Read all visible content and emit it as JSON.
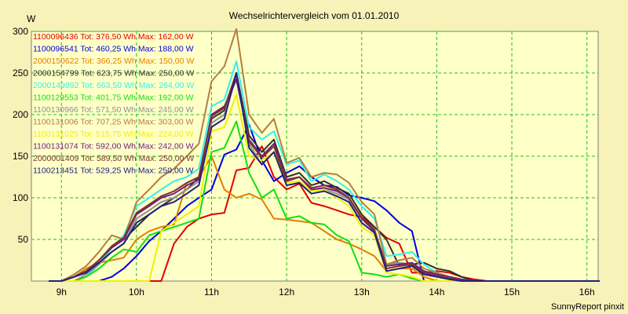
{
  "chart_data": {
    "type": "line",
    "title": "Wechselrichtervergleich vom 01.01.2010",
    "ylabel": "W",
    "xlabel": "",
    "ylim": [
      0,
      300
    ],
    "xlim": [
      8.6,
      16.15
    ],
    "y_ticks": [
      50,
      100,
      150,
      200,
      250,
      300
    ],
    "x_ticks": [
      {
        "v": 9,
        "label": "9h"
      },
      {
        "v": 10,
        "label": "10h"
      },
      {
        "v": 11,
        "label": "11h"
      },
      {
        "v": 12,
        "label": "12h"
      },
      {
        "v": 13,
        "label": "13h"
      },
      {
        "v": 14,
        "label": "14h"
      },
      {
        "v": 15,
        "label": "15h"
      },
      {
        "v": 16,
        "label": "16h"
      }
    ],
    "grid": true,
    "legend_position": "top-left inside",
    "x": [
      8.83,
      9.0,
      9.17,
      9.33,
      9.5,
      9.67,
      9.83,
      10.0,
      10.17,
      10.33,
      10.5,
      10.67,
      10.83,
      11.0,
      11.17,
      11.33,
      11.5,
      11.67,
      11.83,
      12.0,
      12.17,
      12.33,
      12.5,
      12.67,
      12.83,
      13.0,
      13.17,
      13.33,
      13.5,
      13.67,
      13.83,
      14.0,
      14.17,
      14.33,
      14.5,
      14.67,
      14.83,
      15.0,
      15.17,
      15.33,
      15.5,
      15.67,
      15.83,
      16.0,
      16.17
    ],
    "series": [
      {
        "name": "1100096436 Tot: 376,50 Wh Max: 162,00 W",
        "color": "#e00000",
        "values": [
          0,
          0,
          0,
          0,
          0,
          0,
          0,
          0,
          0,
          0,
          45,
          65,
          75,
          80,
          82,
          133,
          136,
          162,
          125,
          110,
          117,
          94,
          90,
          85,
          80,
          77,
          65,
          52,
          45,
          10,
          10,
          12,
          10,
          5,
          2,
          0,
          0,
          0,
          0,
          0,
          0,
          0,
          0,
          0,
          0
        ]
      },
      {
        "name": "1100096541 Tot: 460,25 Wh Max: 188,00 W",
        "color": "#0000e0",
        "values": [
          0,
          0,
          0,
          0,
          0,
          5,
          15,
          30,
          48,
          60,
          75,
          90,
          100,
          110,
          152,
          158,
          188,
          145,
          120,
          130,
          138,
          125,
          115,
          113,
          103,
          100,
          96,
          85,
          70,
          60,
          0,
          0,
          0,
          0,
          0,
          0,
          0,
          0,
          0,
          0,
          0,
          0,
          0,
          0,
          0
        ]
      },
      {
        "name": "2000150622 Tot: 366,25 Wh Max: 150,00 W",
        "color": "#e08000",
        "values": [
          0,
          0,
          5,
          15,
          22,
          25,
          28,
          50,
          60,
          65,
          68,
          118,
          125,
          150,
          110,
          100,
          105,
          98,
          75,
          74,
          72,
          70,
          60,
          50,
          45,
          38,
          30,
          12,
          15,
          15,
          5,
          0,
          0,
          0,
          0,
          0,
          0,
          0,
          0,
          0,
          0,
          0,
          0,
          0,
          0
        ]
      },
      {
        "name": "2000154799 Tot: 623,75 Wh Max: 250,00 W",
        "color": "#303030",
        "values": [
          0,
          0,
          5,
          12,
          25,
          40,
          50,
          65,
          80,
          90,
          100,
          110,
          125,
          195,
          205,
          250,
          175,
          155,
          170,
          125,
          130,
          115,
          120,
          112,
          105,
          80,
          65,
          50,
          18,
          20,
          22,
          15,
          12,
          5,
          0,
          0,
          0,
          0,
          0,
          0,
          0,
          0,
          0,
          0,
          0
        ]
      },
      {
        "name": "2000149892 Tot: 663,50 Wh Max: 264,00 W",
        "color": "#30f0f0",
        "values": [
          0,
          0,
          0,
          5,
          20,
          40,
          55,
          90,
          100,
          110,
          120,
          125,
          135,
          210,
          218,
          264,
          185,
          170,
          180,
          140,
          145,
          120,
          128,
          120,
          110,
          90,
          75,
          30,
          32,
          35,
          20,
          10,
          5,
          2,
          0,
          0,
          0,
          0,
          0,
          0,
          0,
          0,
          0,
          0,
          0
        ]
      },
      {
        "name": "1100129553 Tot: 401,75 Wh Max: 192,00 W",
        "color": "#10e010",
        "values": [
          0,
          0,
          0,
          5,
          15,
          28,
          38,
          35,
          55,
          60,
          65,
          70,
          75,
          155,
          160,
          192,
          130,
          100,
          110,
          75,
          78,
          70,
          68,
          55,
          48,
          10,
          8,
          5,
          8,
          3,
          0,
          0,
          0,
          0,
          0,
          0,
          0,
          0,
          0,
          0,
          0,
          0,
          0,
          0,
          0
        ]
      },
      {
        "name": "1100130966 Tot: 571,50 Wh Max: 245,00 W",
        "color": "#909090",
        "values": [
          0,
          0,
          0,
          8,
          20,
          35,
          45,
          75,
          85,
          95,
          100,
          110,
          120,
          190,
          200,
          245,
          165,
          140,
          155,
          120,
          125,
          110,
          110,
          105,
          98,
          75,
          60,
          20,
          22,
          20,
          12,
          8,
          5,
          2,
          0,
          0,
          0,
          0,
          0,
          0,
          0,
          0,
          0,
          0,
          0
        ]
      },
      {
        "name": "1100131006 Tot: 707,25 Wh Max: 303,00 W",
        "color": "#b08040",
        "values": [
          0,
          0,
          8,
          18,
          35,
          55,
          50,
          95,
          110,
          125,
          135,
          150,
          165,
          240,
          258,
          303,
          200,
          178,
          195,
          142,
          148,
          125,
          130,
          128,
          118,
          95,
          80,
          20,
          25,
          28,
          15,
          10,
          5,
          2,
          0,
          0,
          0,
          0,
          0,
          0,
          0,
          0,
          0,
          0,
          0
        ]
      },
      {
        "name": "1100131025 Tot: 515,75 Wh Max: 224,00 W",
        "color": "#f0f000",
        "values": [
          0,
          0,
          0,
          0,
          0,
          0,
          0,
          0,
          0,
          60,
          70,
          80,
          90,
          180,
          185,
          224,
          150,
          145,
          155,
          118,
          120,
          108,
          110,
          100,
          90,
          65,
          55,
          10,
          8,
          5,
          0,
          0,
          0,
          0,
          0,
          0,
          0,
          0,
          0,
          0,
          0,
          0,
          0,
          0,
          0
        ]
      },
      {
        "name": "1100131074 Tot: 592,00 Wh Max: 242,00 W",
        "color": "#702080",
        "values": [
          0,
          0,
          5,
          12,
          25,
          40,
          50,
          80,
          90,
          100,
          105,
          115,
          122,
          200,
          210,
          242,
          170,
          150,
          165,
          122,
          125,
          110,
          112,
          108,
          100,
          75,
          60,
          18,
          20,
          22,
          12,
          8,
          5,
          2,
          0,
          0,
          0,
          0,
          0,
          0,
          0,
          0,
          0,
          0,
          0
        ]
      },
      {
        "name": "2000001409 Tot: 589,50 Wh Max: 250,00 W",
        "color": "#803030",
        "values": [
          0,
          0,
          5,
          12,
          25,
          42,
          52,
          82,
          92,
          102,
          108,
          118,
          125,
          198,
          208,
          250,
          168,
          148,
          162,
          120,
          125,
          112,
          115,
          110,
          100,
          76,
          62,
          15,
          18,
          20,
          10,
          6,
          3,
          1,
          0,
          0,
          0,
          0,
          0,
          0,
          0,
          0,
          0,
          0,
          0
        ]
      },
      {
        "name": "1100213451 Tot: 529,25 Wh Max: 250,00 W",
        "color": "#202080",
        "values": [
          0,
          0,
          5,
          10,
          22,
          35,
          45,
          70,
          80,
          90,
          95,
          105,
          115,
          185,
          195,
          250,
          160,
          140,
          155,
          115,
          118,
          105,
          108,
          102,
          95,
          70,
          58,
          12,
          15,
          18,
          8,
          5,
          2,
          0,
          0,
          0,
          0,
          0,
          0,
          0,
          0,
          0,
          0,
          0,
          0
        ]
      }
    ]
  },
  "footer": "SunnyReport pinxit"
}
